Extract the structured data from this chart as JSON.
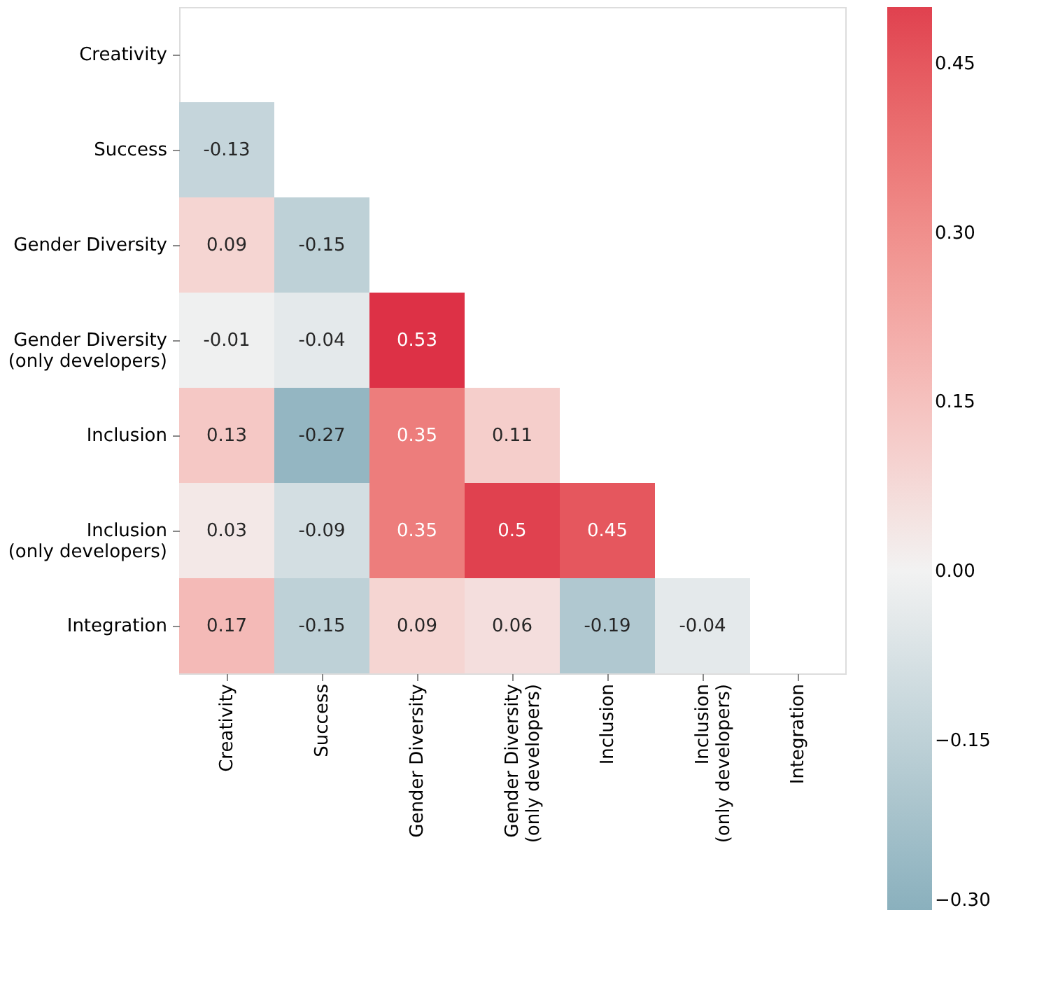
{
  "chart_data": {
    "type": "heatmap",
    "categories": [
      "Creativity",
      "Success",
      "Gender Diversity",
      "Gender Diversity\n(only developers)",
      "Inclusion",
      "Inclusion\n(only developers)",
      "Integration"
    ],
    "y_categories": [
      "Creativity",
      "Success",
      "Gender Diversity",
      "Gender Diversity\n(only developers)",
      "Inclusion",
      "Inclusion\n(only developers)",
      "Integration"
    ],
    "cells": [
      [
        null,
        null,
        null,
        null,
        null,
        null,
        null
      ],
      [
        -0.13,
        null,
        null,
        null,
        null,
        null,
        null
      ],
      [
        0.09,
        -0.15,
        null,
        null,
        null,
        null,
        null
      ],
      [
        -0.01,
        -0.04,
        0.53,
        null,
        null,
        null,
        null
      ],
      [
        0.13,
        -0.27,
        0.35,
        0.11,
        null,
        null,
        null
      ],
      [
        0.03,
        -0.09,
        0.35,
        0.5,
        0.45,
        null,
        null
      ],
      [
        0.17,
        -0.15,
        0.09,
        0.06,
        -0.19,
        -0.04,
        null
      ]
    ],
    "data_labels": true,
    "clim": [
      -0.3,
      0.5
    ],
    "cticks": [
      {
        "value": -0.3,
        "label": "−0.30"
      },
      {
        "value": -0.15,
        "label": "−0.15"
      },
      {
        "value": 0,
        "label": "0.00"
      },
      {
        "value": 0.15,
        "label": "0.15"
      },
      {
        "value": 0.3,
        "label": "0.30"
      },
      {
        "value": 0.45,
        "label": "0.45"
      }
    ],
    "colors": [
      "#8ab0bd",
      "#f2f2f2",
      "#e0414f"
    ]
  }
}
